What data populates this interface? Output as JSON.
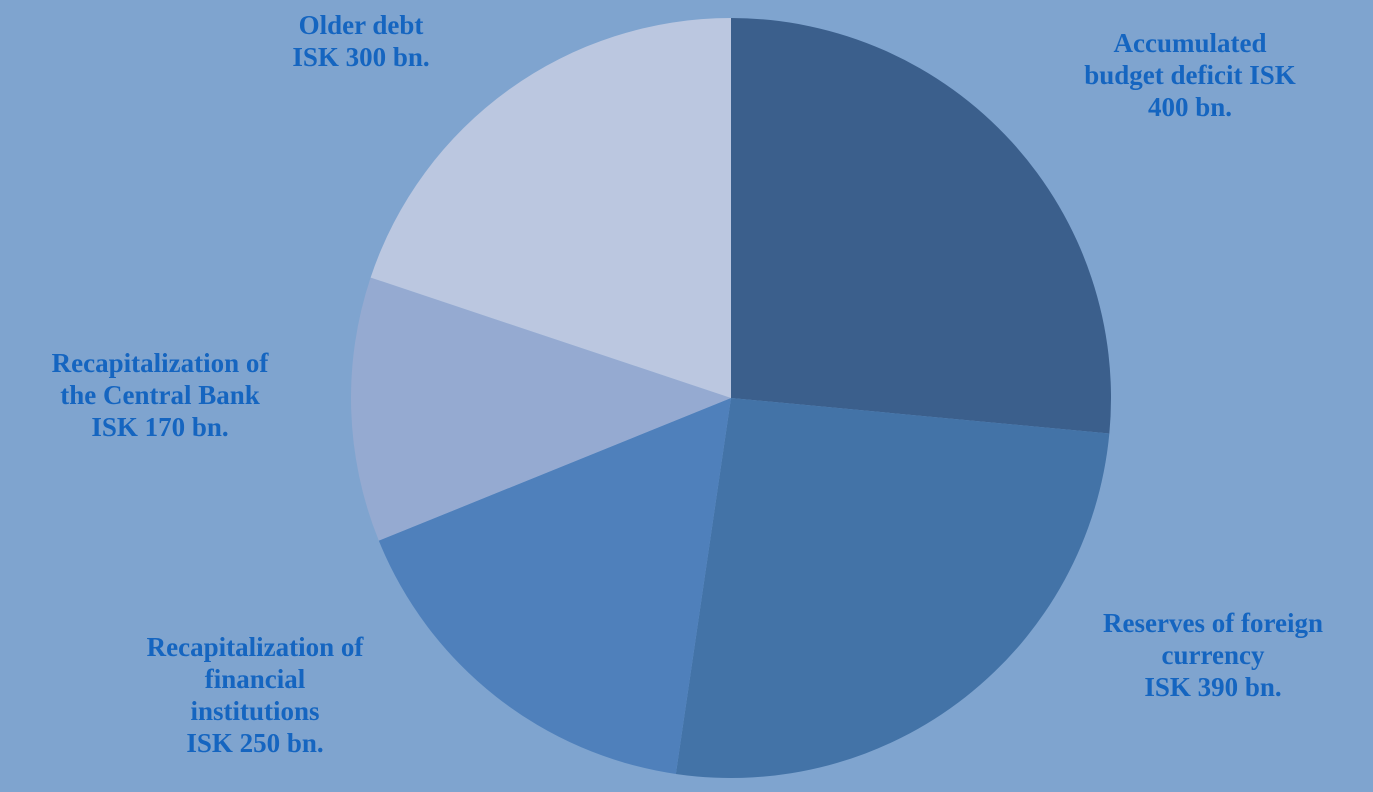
{
  "chart_data": {
    "type": "pie",
    "slices": [
      {
        "name": "Accumulated budget deficit",
        "value": 400,
        "label_lines": [
          "Accumulated",
          "budget deficit ISK",
          "400 bn."
        ],
        "color": "#3b5f8c"
      },
      {
        "name": "Reserves of foreign currency",
        "value": 390,
        "label_lines": [
          "Reserves of foreign",
          "currency",
          "ISK 390 bn."
        ],
        "color": "#4373a7"
      },
      {
        "name": "Recapitalization of financial institutions",
        "value": 250,
        "label_lines": [
          "Recapitalization of",
          "financial",
          "institutions",
          "ISK 250 bn."
        ],
        "color": "#4f80bb"
      },
      {
        "name": "Recapitalization of the Central Bank",
        "value": 170,
        "label_lines": [
          "Recapitalization of",
          "the Central Bank",
          "ISK 170 bn."
        ],
        "color": "#95aad1"
      },
      {
        "name": "Older debt",
        "value": 300,
        "label_lines": [
          "Older debt",
          "ISK 300 bn."
        ],
        "color": "#bbc7e0"
      }
    ],
    "unit": "ISK bn.",
    "start": "12 o'clock",
    "direction": "clockwise",
    "legend": "none",
    "label_color": "#1565c0",
    "background_color": "#7fa4cf"
  }
}
